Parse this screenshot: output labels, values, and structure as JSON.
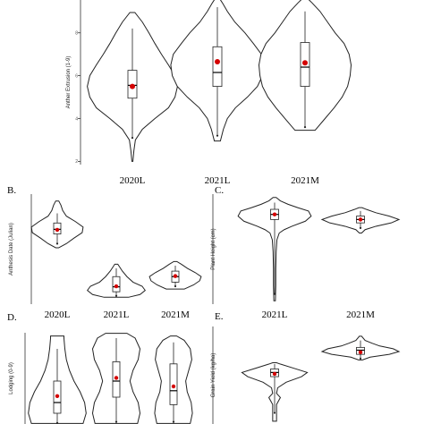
{
  "colors": {
    "mean_dot": "#d40000",
    "outline": "#222222",
    "background": "#ffffff"
  },
  "chart_data": [
    {
      "type": "violin",
      "letter": "",
      "ylabel": "Anther Extrusion (1-9)",
      "ylim": [
        1.85,
        9.7
      ],
      "yticks": [
        2,
        4,
        6,
        8
      ],
      "categories": [
        "2020L",
        "2021L",
        "2021M"
      ],
      "series": [
        {
          "name": "2020L",
          "min": 2.0,
          "max": 8.95,
          "q1": 4.95,
          "median": 5.55,
          "q3": 6.25,
          "mean": 5.5,
          "whisker_low": 3.1,
          "whisker_high": 8.2,
          "profile": [
            [
              2.0,
              0.01
            ],
            [
              2.5,
              0.03
            ],
            [
              3.0,
              0.06
            ],
            [
              3.5,
              0.2
            ],
            [
              4.0,
              0.45
            ],
            [
              4.5,
              0.72
            ],
            [
              5.0,
              0.85
            ],
            [
              5.5,
              0.9
            ],
            [
              6.0,
              0.85
            ],
            [
              6.5,
              0.72
            ],
            [
              7.0,
              0.58
            ],
            [
              7.5,
              0.45
            ],
            [
              8.0,
              0.33
            ],
            [
              8.5,
              0.2
            ],
            [
              8.95,
              0.05
            ]
          ]
        },
        {
          "name": "2021L",
          "min": 2.95,
          "max": 9.65,
          "q1": 5.5,
          "median": 6.15,
          "q3": 7.35,
          "mean": 6.65,
          "whisker_low": 3.2,
          "whisker_high": 9.2,
          "profile": [
            [
              2.95,
              0.06
            ],
            [
              3.5,
              0.12
            ],
            [
              4.0,
              0.2
            ],
            [
              4.5,
              0.36
            ],
            [
              5.0,
              0.6
            ],
            [
              5.5,
              0.8
            ],
            [
              6.0,
              0.9
            ],
            [
              6.5,
              0.93
            ],
            [
              7.0,
              0.88
            ],
            [
              7.5,
              0.72
            ],
            [
              8.0,
              0.55
            ],
            [
              8.5,
              0.35
            ],
            [
              9.0,
              0.2
            ],
            [
              9.4,
              0.1
            ],
            [
              9.65,
              0.03
            ]
          ]
        },
        {
          "name": "2021M",
          "min": 3.45,
          "max": 9.65,
          "q1": 5.5,
          "median": 6.4,
          "q3": 7.55,
          "mean": 6.6,
          "whisker_low": 3.6,
          "whisker_high": 9.0,
          "profile": [
            [
              3.45,
              0.2
            ],
            [
              4.0,
              0.4
            ],
            [
              4.5,
              0.58
            ],
            [
              5.0,
              0.74
            ],
            [
              5.5,
              0.85
            ],
            [
              6.0,
              0.9
            ],
            [
              6.5,
              0.92
            ],
            [
              7.0,
              0.88
            ],
            [
              7.5,
              0.78
            ],
            [
              8.0,
              0.6
            ],
            [
              8.5,
              0.45
            ],
            [
              9.0,
              0.3
            ],
            [
              9.4,
              0.14
            ],
            [
              9.65,
              0.03
            ]
          ]
        }
      ]
    },
    {
      "type": "violin",
      "letter": "B.",
      "ylabel": "Anthesis Date (Julian)",
      "ylim": [
        130,
        170
      ],
      "yticks": [],
      "categories": [
        "2020L",
        "2021L",
        "2021M"
      ],
      "series": [
        {
          "name": "2020L",
          "min": 150.5,
          "max": 167.5,
          "q1": 155.5,
          "median": 157.2,
          "q3": 159.5,
          "mean": 157.0,
          "whisker_low": 152.0,
          "whisker_high": 163.0,
          "profile": [
            [
              150.5,
              0.05
            ],
            [
              152.0,
              0.3
            ],
            [
              154.0,
              0.55
            ],
            [
              156.0,
              0.82
            ],
            [
              158.0,
              0.85
            ],
            [
              160.0,
              0.6
            ],
            [
              162.0,
              0.3
            ],
            [
              164.0,
              0.18
            ],
            [
              166.0,
              0.12
            ],
            [
              167.5,
              0.05
            ]
          ]
        },
        {
          "name": "2021L",
          "min": 132.5,
          "max": 144.5,
          "q1": 134.5,
          "median": 136.3,
          "q3": 140.0,
          "mean": 136.5,
          "whisker_low": 133.0,
          "whisker_high": 143.0,
          "profile": [
            [
              132.5,
              0.4
            ],
            [
              133.5,
              0.78
            ],
            [
              135.0,
              0.95
            ],
            [
              136.5,
              0.85
            ],
            [
              138.0,
              0.55
            ],
            [
              140.0,
              0.35
            ],
            [
              142.0,
              0.2
            ],
            [
              144.5,
              0.05
            ]
          ]
        },
        {
          "name": "2021M",
          "min": 135.5,
          "max": 145.5,
          "q1": 138.0,
          "median": 140.0,
          "q3": 142.0,
          "mean": 140.2,
          "whisker_low": 136.5,
          "whisker_high": 144.0,
          "profile": [
            [
              135.5,
              0.3
            ],
            [
              137.0,
              0.6
            ],
            [
              138.5,
              0.8
            ],
            [
              140.0,
              0.85
            ],
            [
              141.5,
              0.65
            ],
            [
              143.0,
              0.4
            ],
            [
              144.5,
              0.2
            ],
            [
              145.5,
              0.05
            ]
          ]
        }
      ]
    },
    {
      "type": "violin",
      "letter": "C.",
      "ylabel": "Plant Height (cm)",
      "ylim": [
        44,
        109
      ],
      "yticks": [],
      "categories": [
        "2021L",
        "2021M"
      ],
      "series": [
        {
          "name": "2021L",
          "min": 46,
          "max": 107,
          "q1": 94,
          "median": 97,
          "q3": 100,
          "mean": 97,
          "whisker_low": 50,
          "whisker_high": 104,
          "profile": [
            [
              46,
              0.02
            ],
            [
              55,
              0.03
            ],
            [
              65,
              0.03
            ],
            [
              75,
              0.04
            ],
            [
              82,
              0.06
            ],
            [
              86,
              0.12
            ],
            [
              88,
              0.25
            ],
            [
              90,
              0.45
            ],
            [
              93,
              0.8
            ],
            [
              96,
              0.95
            ],
            [
              99,
              0.88
            ],
            [
              101,
              0.6
            ],
            [
              103,
              0.35
            ],
            [
              105,
              0.15
            ],
            [
              107,
              0.04
            ]
          ]
        },
        {
          "name": "2021M",
          "min": 86,
          "max": 101,
          "q1": 92,
          "median": 94,
          "q3": 96,
          "mean": 94,
          "whisker_low": 89,
          "whisker_high": 99,
          "profile": [
            [
              86,
              0.03
            ],
            [
              88,
              0.12
            ],
            [
              90,
              0.4
            ],
            [
              92,
              0.8
            ],
            [
              94,
              1.0
            ],
            [
              96,
              0.75
            ],
            [
              98,
              0.4
            ],
            [
              100,
              0.15
            ],
            [
              101,
              0.04
            ]
          ]
        }
      ]
    },
    {
      "type": "violin",
      "letter": "D.",
      "ylabel": "Lodging (0-9)",
      "ylim": [
        0,
        8.5
      ],
      "yticks": [],
      "categories": [
        "2020L",
        "2021L",
        "2021M"
      ],
      "series": [
        {
          "name": "2020L",
          "min": 0.05,
          "max": 8.2,
          "q1": 1.0,
          "median": 2.0,
          "q3": 4.0,
          "mean": 2.6,
          "whisker_low": 0.1,
          "whisker_high": 7.0,
          "profile": [
            [
              0.05,
              0.85
            ],
            [
              1.0,
              0.95
            ],
            [
              2.0,
              0.9
            ],
            [
              3.0,
              0.75
            ],
            [
              4.0,
              0.55
            ],
            [
              5.0,
              0.4
            ],
            [
              6.0,
              0.3
            ],
            [
              7.0,
              0.25
            ],
            [
              8.0,
              0.22
            ],
            [
              8.2,
              0.22
            ]
          ]
        },
        {
          "name": "2021L",
          "min": 0.05,
          "max": 8.45,
          "q1": 2.5,
          "median": 4.0,
          "q3": 5.8,
          "mean": 4.3,
          "whisker_low": 0.2,
          "whisker_high": 8.0,
          "profile": [
            [
              0.05,
              0.7
            ],
            [
              1.0,
              0.78
            ],
            [
              2.0,
              0.72
            ],
            [
              3.0,
              0.55
            ],
            [
              4.0,
              0.45
            ],
            [
              5.0,
              0.55
            ],
            [
              6.0,
              0.72
            ],
            [
              7.0,
              0.78
            ],
            [
              8.0,
              0.62
            ],
            [
              8.45,
              0.35
            ]
          ]
        },
        {
          "name": "2021M",
          "min": 0.05,
          "max": 8.2,
          "q1": 1.8,
          "median": 3.1,
          "q3": 5.6,
          "mean": 3.5,
          "whisker_low": 0.2,
          "whisker_high": 7.6,
          "profile": [
            [
              0.05,
              0.55
            ],
            [
              1.0,
              0.62
            ],
            [
              2.0,
              0.58
            ],
            [
              3.0,
              0.45
            ],
            [
              4.0,
              0.4
            ],
            [
              5.0,
              0.5
            ],
            [
              6.0,
              0.6
            ],
            [
              7.0,
              0.55
            ],
            [
              7.8,
              0.35
            ],
            [
              8.2,
              0.1
            ]
          ]
        }
      ]
    },
    {
      "type": "violin",
      "letter": "E.",
      "ylabel": "Grain Yield (kg/ha)",
      "ylim": [
        1000,
        8000
      ],
      "yticks": [],
      "categories": [
        "2021L",
        "2021M"
      ],
      "series": [
        {
          "name": "2021L",
          "min": 1200,
          "max": 5400,
          "q1": 4400,
          "median": 4700,
          "q3": 4950,
          "mean": 4600,
          "whisker_low": 1800,
          "whisker_high": 5300,
          "profile": [
            [
              1200,
              0.05
            ],
            [
              1800,
              0.05
            ],
            [
              2400,
              0.05
            ],
            [
              2900,
              0.15
            ],
            [
              3200,
              0.05
            ],
            [
              3600,
              0.08
            ],
            [
              4000,
              0.3
            ],
            [
              4400,
              0.7
            ],
            [
              4700,
              0.85
            ],
            [
              5000,
              0.5
            ],
            [
              5300,
              0.15
            ],
            [
              5400,
              0.05
            ]
          ]
        },
        {
          "name": "2021M",
          "min": 5600,
          "max": 7300,
          "q1": 6000,
          "median": 6300,
          "q3": 6500,
          "mean": 6150,
          "whisker_low": 5700,
          "whisker_high": 7000,
          "profile": [
            [
              5600,
              0.05
            ],
            [
              5800,
              0.25
            ],
            [
              6000,
              0.75
            ],
            [
              6200,
              1.0
            ],
            [
              6400,
              0.85
            ],
            [
              6600,
              0.5
            ],
            [
              6800,
              0.3
            ],
            [
              7000,
              0.12
            ],
            [
              7300,
              0.03
            ]
          ]
        }
      ]
    }
  ]
}
